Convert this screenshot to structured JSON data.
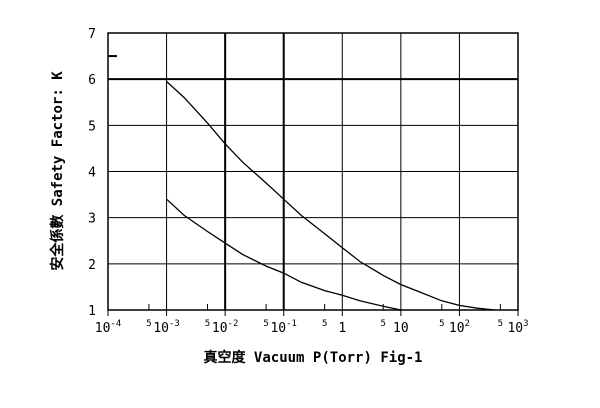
{
  "chart_data": {
    "type": "line",
    "xscale": "log",
    "xlim": [
      0.0001,
      1000
    ],
    "ylim": [
      1,
      7
    ],
    "grid": true,
    "xlabel": "真空度 Vacuum P(Torr) Fig-1",
    "ylabel": "安全係數 Safety Factor: K",
    "x_major_ticks": [
      {
        "value": 0.0001,
        "base": "10",
        "exp": "-4"
      },
      {
        "value": 0.001,
        "base": "10",
        "exp": "-3"
      },
      {
        "value": 0.01,
        "base": "10",
        "exp": "-2"
      },
      {
        "value": 0.1,
        "base": "10",
        "exp": "-1"
      },
      {
        "value": 1,
        "base": "1",
        "exp": ""
      },
      {
        "value": 10,
        "base": "10",
        "exp": ""
      },
      {
        "value": 100,
        "base": "10",
        "exp": "2"
      },
      {
        "value": 1000,
        "base": "10",
        "exp": "3"
      }
    ],
    "x_minor_ticks": [
      {
        "value": 0.0005,
        "label": "5"
      },
      {
        "value": 0.005,
        "label": "5"
      },
      {
        "value": 0.05,
        "label": "5"
      },
      {
        "value": 0.5,
        "label": "5"
      },
      {
        "value": 5,
        "label": "5"
      },
      {
        "value": 50,
        "label": "5"
      },
      {
        "value": 500,
        "label": "5"
      }
    ],
    "y_ticks": [
      1,
      2,
      3,
      4,
      5,
      6,
      7
    ],
    "series": [
      {
        "x": [
          0.001,
          0.002,
          0.005,
          0.01,
          0.02,
          0.05,
          0.1,
          0.2,
          0.5,
          1,
          2,
          5,
          10,
          20,
          50,
          100,
          200,
          400
        ],
        "y": [
          5.95,
          5.6,
          5.05,
          4.6,
          4.2,
          3.75,
          3.4,
          3.05,
          2.65,
          2.35,
          2.05,
          1.75,
          1.55,
          1.4,
          1.2,
          1.1,
          1.04,
          1.0
        ]
      },
      {
        "x": [
          0.001,
          0.002,
          0.005,
          0.01,
          0.02,
          0.05,
          0.1,
          0.2,
          0.5,
          1,
          2,
          5,
          10
        ],
        "y": [
          3.4,
          3.05,
          2.7,
          2.45,
          2.2,
          1.95,
          1.8,
          1.6,
          1.42,
          1.32,
          1.2,
          1.08,
          1.0
        ]
      }
    ]
  }
}
